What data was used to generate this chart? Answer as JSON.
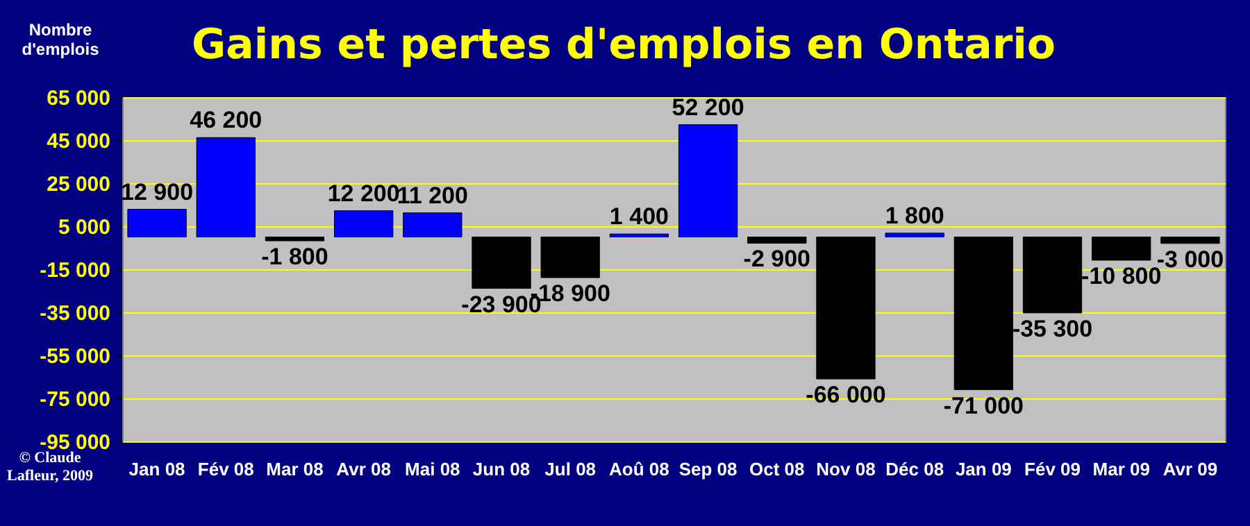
{
  "chart_data": {
    "type": "bar",
    "title": "Gains et pertes d'emplois en Ontario",
    "ylabel": "Nombre d'emplois",
    "categories": [
      "Jan 08",
      "Fév 08",
      "Mar 08",
      "Avr 08",
      "Mai 08",
      "Jun 08",
      "Jul 08",
      "Aoû 08",
      "Sep 08",
      "Oct 08",
      "Nov 08",
      "Déc 08",
      "Jan 09",
      "Fév 09",
      "Mar 09",
      "Avr 09"
    ],
    "values": [
      12900,
      46200,
      -1800,
      12200,
      11200,
      -23900,
      -18900,
      1400,
      52200,
      -2900,
      -66000,
      1800,
      -71000,
      -35300,
      -10800,
      -3000
    ],
    "colors": [
      "#0000ff",
      "#0000ff",
      "#000000",
      "#0000ff",
      "#0000ff",
      "#000000",
      "#000000",
      "#0000ff",
      "#0000ff",
      "#000000",
      "#000000",
      "#0000ff",
      "#000000",
      "#000000",
      "#000000",
      "#000000"
    ],
    "value_labels": [
      "12 900",
      "46 200",
      "-1 800",
      "12 200",
      "11 200",
      "-23 900",
      "-18 900",
      "1 400",
      "52 200",
      "-2 900",
      "-66 000",
      "1 800",
      "-71 000",
      "-35 300",
      "-10 800",
      "-3 000"
    ],
    "ylim": [
      -95000,
      65000
    ],
    "yticks": [
      {
        "value": -95000,
        "label": "-95 000"
      },
      {
        "value": -75000,
        "label": "-75 000"
      },
      {
        "value": -55000,
        "label": "-55 000"
      },
      {
        "value": -35000,
        "label": "-35 000"
      },
      {
        "value": -15000,
        "label": "-15 000"
      },
      {
        "value": 5000,
        "label": "5 000"
      },
      {
        "value": 25000,
        "label": "25 000"
      },
      {
        "value": 45000,
        "label": "45 000"
      },
      {
        "value": 65000,
        "label": "65 000"
      }
    ],
    "grid": "y",
    "annotations": [
      "© Claude Lafleur, 2009"
    ]
  }
}
